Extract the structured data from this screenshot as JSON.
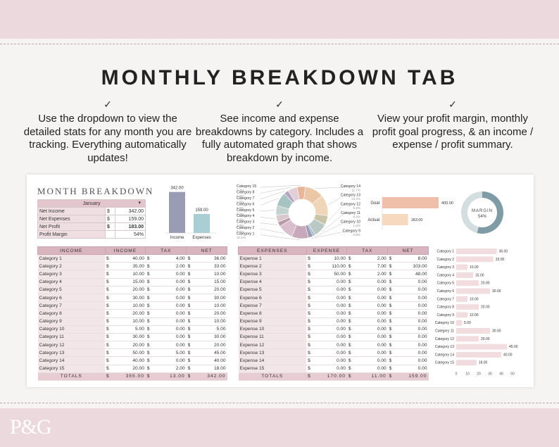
{
  "headline": "MONTHLY BREAKDOWN TAB",
  "check_mark": "✓",
  "blurbs": [
    "Use the dropdown to view the detailed stats for any month you are tracking. Everything automatically updates!",
    "See income and expense breakdowns by category. Includes a fully automated graph that shows breakdown by income.",
    "View your profit margin, monthly profit goal progress, & an income / expense / profit summary."
  ],
  "brand": "P&G",
  "sheet": {
    "title": "MONTH BREAKDOWN",
    "month": "January",
    "summary": [
      {
        "label": "Net Income",
        "cur": "$",
        "value": "342.00"
      },
      {
        "label": "Net Expenses",
        "cur": "$",
        "value": "159.00"
      },
      {
        "label": "Net Profit",
        "cur": "$",
        "value": "183.00"
      },
      {
        "label": "Profit Margin",
        "cur": "",
        "value": "54%"
      }
    ],
    "income_headers": [
      "INCOME",
      "INCOME",
      "TAX",
      "NET"
    ],
    "income_rows": [
      [
        "Category 1",
        "40.00",
        "4.00",
        "36.00"
      ],
      [
        "Category 2",
        "35.00",
        "2.00",
        "33.00"
      ],
      [
        "Category 3",
        "10.00",
        "0.00",
        "10.00"
      ],
      [
        "Category 4",
        "15.00",
        "0.00",
        "15.00"
      ],
      [
        "Category 5",
        "20.00",
        "0.00",
        "20.00"
      ],
      [
        "Category 6",
        "30.00",
        "0.00",
        "30.00"
      ],
      [
        "Category 7",
        "10.00",
        "0.00",
        "10.00"
      ],
      [
        "Category 8",
        "20.00",
        "0.00",
        "20.00"
      ],
      [
        "Category 9",
        "10.00",
        "0.00",
        "10.00"
      ],
      [
        "Category 10",
        "5.00",
        "0.00",
        "5.00"
      ],
      [
        "Category 11",
        "30.00",
        "0.00",
        "30.00"
      ],
      [
        "Category 12",
        "20.00",
        "0.00",
        "20.00"
      ],
      [
        "Category 13",
        "50.00",
        "5.00",
        "45.00"
      ],
      [
        "Category 14",
        "40.00",
        "0.00",
        "40.00"
      ],
      [
        "Category 15",
        "20.00",
        "2.00",
        "18.00"
      ]
    ],
    "income_totals": [
      "TOTALS",
      "355.00",
      "13.00",
      "342.00"
    ],
    "expense_headers": [
      "EXPENSES",
      "EXPENSE",
      "TAX",
      "NET"
    ],
    "expense_rows": [
      [
        "Expense 1",
        "10.00",
        "2.00",
        "8.00"
      ],
      [
        "Expense 2",
        "110.00",
        "7.00",
        "103.00"
      ],
      [
        "Expense 3",
        "50.00",
        "2.00",
        "48.00"
      ],
      [
        "Expense 4",
        "0.00",
        "0.00",
        "0.00"
      ],
      [
        "Expense 5",
        "0.00",
        "0.00",
        "0.00"
      ],
      [
        "Expense 6",
        "0.00",
        "0.00",
        "0.00"
      ],
      [
        "Expense 7",
        "0.00",
        "0.00",
        "0.00"
      ],
      [
        "Expense 8",
        "0.00",
        "0.00",
        "0.00"
      ],
      [
        "Expense 9",
        "0.00",
        "0.00",
        "0.00"
      ],
      [
        "Expense 10",
        "0.00",
        "0.00",
        "0.00"
      ],
      [
        "Expense 11",
        "0.00",
        "0.00",
        "0.00"
      ],
      [
        "Expense 12",
        "0.00",
        "0.00",
        "0.00"
      ],
      [
        "Expense 13",
        "0.00",
        "0.00",
        "0.00"
      ],
      [
        "Expense 14",
        "0.00",
        "0.00",
        "0.00"
      ],
      [
        "Expense 15",
        "0.00",
        "0.00",
        "0.00"
      ]
    ],
    "expense_totals": [
      "TOTALS",
      "170.00",
      "11.00",
      "159.00"
    ],
    "margin_label": "MARGIN",
    "margin_value": "54%"
  },
  "chart_data": [
    {
      "type": "bar",
      "categories": [
        "Income",
        "Expenses"
      ],
      "values": [
        342,
        159
      ],
      "data_labels": [
        "342.00",
        "159.00"
      ],
      "colors": [
        "#9a9cb4",
        "#a9cfd4"
      ]
    },
    {
      "type": "pie",
      "hole": true,
      "labels": [
        "Category 15",
        "Category 14",
        "Category 13",
        "Category 12",
        "Category 11",
        "Category 10",
        "Category 9",
        "Category 1",
        "Category 2",
        "Category 3",
        "Category 4",
        "Category 5",
        "Category 6",
        "Category 7",
        "Category 8"
      ],
      "values": [
        18,
        40,
        45,
        20,
        30,
        5,
        10,
        36,
        33,
        10,
        15,
        20,
        30,
        10,
        20
      ],
      "colors": [
        "#e8b49a",
        "#ecc7a6",
        "#f0d6b8",
        "#c9c3a8",
        "#b9c9c6",
        "#a8b8c8",
        "#9a9cb4",
        "#c7a9bb",
        "#d9bfcd",
        "#b99aa6",
        "#d8c9cf",
        "#c2d2cf",
        "#a7c4c3",
        "#b5a7c2",
        "#e3cfd8"
      ],
      "shown_percents": [
        "5.3%",
        "11.7%",
        "13.2%",
        "5.8%",
        "8.8%",
        "1.5%",
        "2.9%",
        "10.5%",
        "9.6%",
        "2.9%",
        "4.4%",
        "5.8%",
        "8.8%",
        "2.9%",
        "5.8%"
      ]
    },
    {
      "type": "bar",
      "orientation": "horizontal",
      "categories": [
        "Goal",
        "Actual"
      ],
      "values": [
        400,
        183
      ],
      "data_labels": [
        "400.00",
        "183.00"
      ],
      "colors": [
        "#f0bfaa",
        "#f6d9bf"
      ]
    },
    {
      "type": "pie",
      "hole": true,
      "values": [
        54,
        46
      ],
      "colors": [
        "#7f9ba6",
        "#d4dddf"
      ]
    },
    {
      "type": "bar",
      "orientation": "horizontal",
      "categories": [
        "Category 1",
        "Category 2",
        "Category 3",
        "Category 4",
        "Category 5",
        "Category 6",
        "Category 7",
        "Category 8",
        "Category 9",
        "Category 10",
        "Category 11",
        "Category 12",
        "Category 13",
        "Category 14",
        "Category 15"
      ],
      "values": [
        36,
        33,
        10,
        15,
        20,
        30,
        10,
        20,
        10,
        5,
        30,
        20,
        45,
        40,
        18
      ],
      "data_labels": [
        "36.00",
        "33.00",
        "10.00",
        "15.00",
        "20.00",
        "30.00",
        "10.00",
        "20.00",
        "10.00",
        "5.00",
        "30.00",
        "20.00",
        "45.00",
        "40.00",
        "18.00"
      ],
      "xlim": [
        0,
        50
      ],
      "xticks": [
        "0",
        "10",
        "20",
        "30",
        "40",
        "50"
      ],
      "color": "#f1dce0"
    }
  ]
}
